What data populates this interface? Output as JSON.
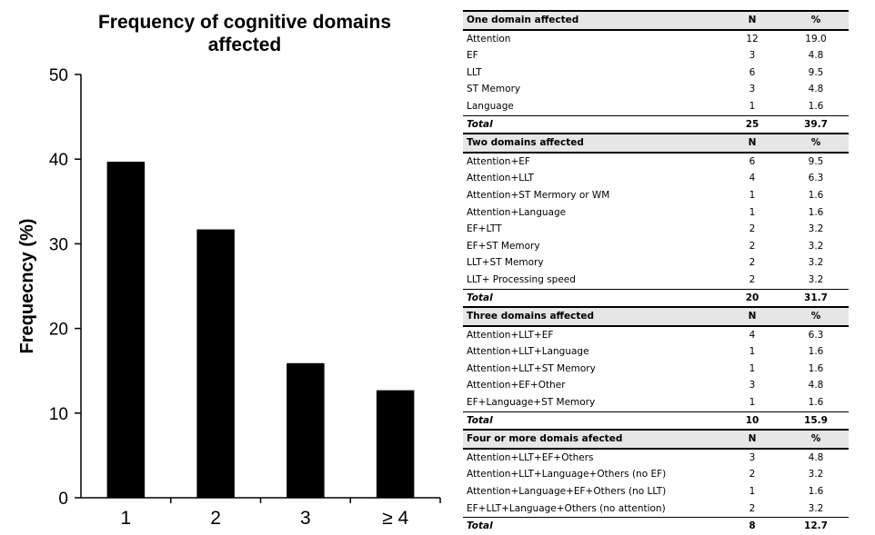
{
  "chart_data": {
    "type": "bar",
    "title_lines": [
      "Frequency of cognitive domains",
      "affected"
    ],
    "ylabel": "Frequecncy (%)",
    "xlabel": "",
    "categories": [
      "1",
      "2",
      "3",
      "≥ 4"
    ],
    "values": [
      39.7,
      31.7,
      15.9,
      12.7
    ],
    "ylim": [
      0,
      50
    ],
    "yticks": [
      "0",
      "10",
      "20",
      "30",
      "40",
      "50"
    ],
    "grid": false,
    "bar_color": "#000000"
  },
  "table": {
    "sections": [
      {
        "header": [
          "One domain affected",
          "N",
          "%"
        ],
        "rows": [
          [
            "Attention",
            "12",
            "19.0"
          ],
          [
            "EF",
            "3",
            "4.8"
          ],
          [
            "LLT",
            "6",
            "9.5"
          ],
          [
            "ST Memory",
            "3",
            "4.8"
          ],
          [
            "Language",
            "1",
            "1.6"
          ]
        ],
        "total": [
          "Total",
          "25",
          "39.7"
        ]
      },
      {
        "header": [
          "Two domains affected",
          "N",
          "%"
        ],
        "rows": [
          [
            "Attention+EF",
            "6",
            "9.5"
          ],
          [
            "Attention+LLT",
            "4",
            "6.3"
          ],
          [
            "Attention+ST Mermory or WM",
            "1",
            "1.6"
          ],
          [
            "Attention+Language",
            "1",
            "1.6"
          ],
          [
            "EF+LTT",
            "2",
            "3.2"
          ],
          [
            "EF+ST Memory",
            "2",
            "3.2"
          ],
          [
            "LLT+ST Memory",
            "2",
            "3.2"
          ],
          [
            "LLT+ Processing speed",
            "2",
            "3.2"
          ]
        ],
        "total": [
          "Total",
          "20",
          "31.7"
        ]
      },
      {
        "header": [
          "Three domains affected",
          "N",
          "%"
        ],
        "rows": [
          [
            "Attention+LLT+EF",
            "4",
            "6.3"
          ],
          [
            "Attention+LLT+Language",
            "1",
            "1.6"
          ],
          [
            "Attention+LLT+ST Memory",
            "1",
            "1.6"
          ],
          [
            "Attention+EF+Other",
            "3",
            "4.8"
          ],
          [
            "EF+Language+ST Memory",
            "1",
            "1.6"
          ]
        ],
        "total": [
          "Total",
          "10",
          "15.9"
        ]
      },
      {
        "header": [
          "Four or more domais afected",
          "N",
          "%"
        ],
        "rows": [
          [
            "Attention+LLT+EF+Others",
            "3",
            "4.8"
          ],
          [
            "Attention+LLT+Language+Others (no EF)",
            "2",
            "3.2"
          ],
          [
            "Attention+Language+EF+Others (no LLT)",
            "1",
            "1.6"
          ],
          [
            "EF+LLT+Language+Others (no attention)",
            "2",
            "3.2"
          ]
        ],
        "total": [
          "Total",
          "8",
          "12.7"
        ]
      }
    ]
  }
}
